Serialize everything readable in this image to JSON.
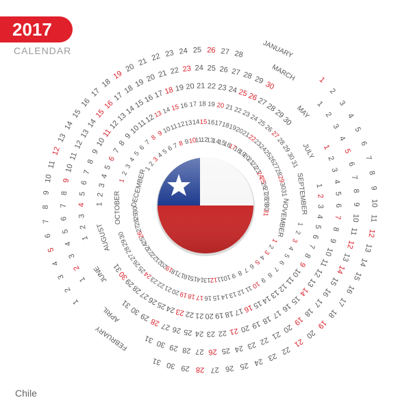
{
  "year": "2017",
  "subtitle": "CALENDAR",
  "country": "Chile",
  "colors": {
    "accent": "#e0202a",
    "day": "#555555",
    "holiday": "#d8202a",
    "flag_blue": "#1d3b8f",
    "flag_red": "#c92a2a"
  },
  "flag_icon": "chile-flag-icon",
  "months": [
    {
      "name": "JANUARY",
      "days": 31,
      "red": [
        1,
        12,
        19,
        21,
        28
      ]
    },
    {
      "name": "FEBRUARY",
      "days": 28,
      "red": [
        5,
        12,
        19,
        26
      ]
    },
    {
      "name": "MARCH",
      "days": 31,
      "red": [
        5,
        12,
        14,
        19,
        26
      ]
    },
    {
      "name": "APRIL",
      "days": 30,
      "red": [
        2,
        9,
        15,
        16,
        23,
        30
      ]
    },
    {
      "name": "MAY",
      "days": 31,
      "red": [
        1,
        7,
        14,
        21,
        28
      ]
    },
    {
      "name": "JUNE",
      "days": 30,
      "red": [
        4,
        11,
        18,
        25,
        26
      ]
    },
    {
      "name": "JULY",
      "days": 31,
      "red": [
        2,
        9,
        16,
        23,
        30
      ]
    },
    {
      "name": "AUGUST",
      "days": 31,
      "red": [
        6,
        13,
        15,
        20,
        27
      ]
    },
    {
      "name": "SEPTEMBER",
      "days": 30,
      "red": [
        3,
        10,
        17,
        18,
        19,
        24
      ]
    },
    {
      "name": "OCTOBER",
      "days": 31,
      "red": [
        1,
        8,
        9,
        15,
        22,
        29
      ]
    },
    {
      "name": "NOVEMBER",
      "days": 30,
      "red": [
        1,
        3,
        5,
        12,
        19,
        26
      ]
    },
    {
      "name": "DECEMBER",
      "days": 31,
      "red": [
        3,
        8,
        10,
        17,
        24,
        25,
        31
      ]
    }
  ]
}
